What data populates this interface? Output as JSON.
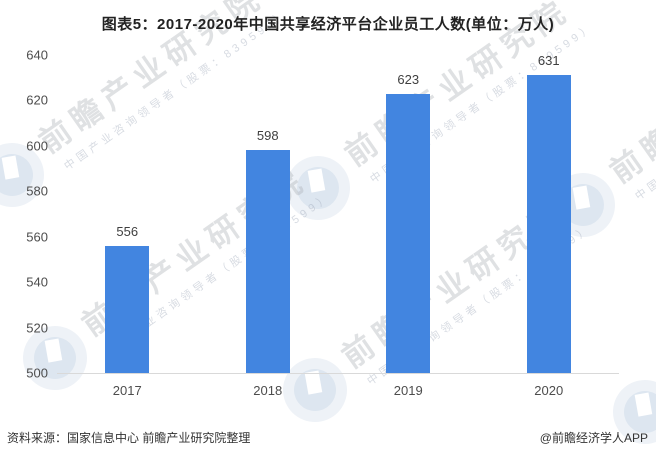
{
  "title": "图表5：2017-2020年中国共享经济平台企业员工人数(单位：万人)",
  "chart_data": {
    "type": "bar",
    "title": "图表5：2017-2020年中国共享经济平台企业员工人数(单位：万人)",
    "categories": [
      "2017",
      "2018",
      "2019",
      "2020"
    ],
    "values": [
      556,
      598,
      623,
      631
    ],
    "unit": "万人",
    "xlabel": "",
    "ylabel": "",
    "ylim": [
      500,
      640
    ],
    "yticks": [
      500,
      520,
      540,
      560,
      580,
      600,
      620,
      640
    ],
    "grid": false,
    "legend": "none",
    "bar_color": "#4285E0",
    "axis_line_color": "#d9d9d9",
    "value_label_color": "#3f3f3f",
    "tick_label_color": "#4d4d4d"
  },
  "watermark": {
    "brand": "前瞻产业研究院",
    "tagline": "中国产业咨询领导者（股票：839599）"
  },
  "footer": {
    "source": "资料来源：国家信息中心 前瞻产业研究院整理",
    "credit": "@前瞻经济学人APP"
  }
}
